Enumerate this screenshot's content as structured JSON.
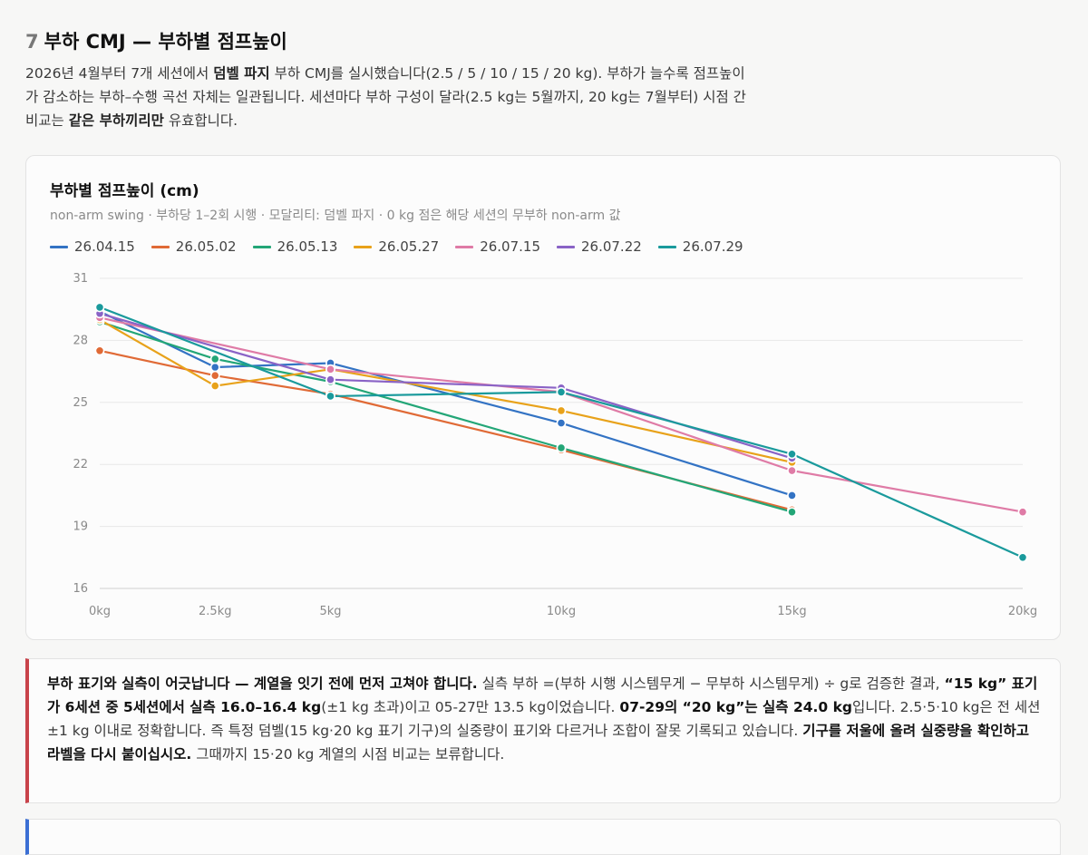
{
  "section": {
    "number": "7",
    "title": "부하 CMJ — 부하별 점프높이"
  },
  "intro": {
    "t1": "2026년 4월부터 7개 세션에서 ",
    "b1": "덤벨 파지",
    "t2": " 부하 CMJ를 실시했습니다(2.5 / 5 / 10 / 15 / 20 kg). 부하가 늘수록 점프높이가 감소하는 부하–수행 곡선 자체는 일관됩니다. 세션마다 부하 구성이 달라(2.5 kg는 5월까지, 20 kg는 7월부터) 시점 간 비교는 ",
    "b2": "같은 부하끼리만",
    "t3": " 유효합니다."
  },
  "chart_data": {
    "type": "line",
    "title": "부하별 점프높이 (cm)",
    "subtitle": "non-arm swing · 부하당 1–2회 시행 · 모달리티: 덤벨 파지 · 0 kg 점은 해당 세션의 무부하 non-arm 값",
    "xlabel": "",
    "ylabel": "",
    "x_ticks": [
      "0kg",
      "2.5kg",
      "5kg",
      "10kg",
      "15kg",
      "20kg"
    ],
    "x_values": [
      0,
      2.5,
      5,
      10,
      15,
      20
    ],
    "y_ticks": [
      "31",
      "28",
      "25",
      "22",
      "19",
      "16"
    ],
    "ylim": [
      16,
      31
    ],
    "xlim": [
      0,
      20
    ],
    "grid": true,
    "legend_position": "top-left",
    "series": [
      {
        "name": "26.04.15",
        "color": "#3373c4",
        "points": [
          [
            0,
            29.4
          ],
          [
            2.5,
            26.7
          ],
          [
            5,
            26.9
          ],
          [
            10,
            24.0
          ],
          [
            15,
            20.5
          ]
        ]
      },
      {
        "name": "26.05.02",
        "color": "#e06a36",
        "points": [
          [
            0,
            27.5
          ],
          [
            2.5,
            26.3
          ],
          [
            5,
            25.4
          ],
          [
            10,
            22.7
          ],
          [
            15,
            19.8
          ]
        ]
      },
      {
        "name": "26.05.13",
        "color": "#23a677",
        "points": [
          [
            0,
            28.9
          ],
          [
            2.5,
            27.1
          ],
          [
            5,
            26.0
          ],
          [
            10,
            22.8
          ],
          [
            15,
            19.7
          ]
        ]
      },
      {
        "name": "26.05.27",
        "color": "#e8a21a",
        "points": [
          [
            0,
            29.0
          ],
          [
            2.5,
            25.8
          ],
          [
            5,
            26.6
          ],
          [
            10,
            24.6
          ],
          [
            15,
            22.1
          ]
        ]
      },
      {
        "name": "26.07.15",
        "color": "#df7ba6",
        "points": [
          [
            0,
            29.1
          ],
          [
            5,
            26.6
          ],
          [
            10,
            25.5
          ],
          [
            15,
            21.7
          ],
          [
            20,
            19.7
          ]
        ]
      },
      {
        "name": "26.07.22",
        "color": "#8a63c6",
        "points": [
          [
            0,
            29.3
          ],
          [
            5,
            26.1
          ],
          [
            10,
            25.7
          ],
          [
            15,
            22.3
          ]
        ]
      },
      {
        "name": "26.07.29",
        "color": "#1a9a9c",
        "points": [
          [
            0,
            29.6
          ],
          [
            5,
            25.3
          ],
          [
            10,
            25.5
          ],
          [
            15,
            22.5
          ],
          [
            20,
            17.5
          ]
        ]
      }
    ]
  },
  "alert": {
    "b1": "부하 표기와 실측이 어긋납니다 — 계열을 잇기 전에 먼저 고쳐야 합니다.",
    "t1": " 실측 부하 =(부하 시행 시스템무게 − 무부하 시스템무게) ÷ g로 검증한 결과, ",
    "b2": "“15 kg” 표기가 6세션 중 5세션에서 실측 16.0–16.4 kg",
    "t2": "(±1 kg 초과)이고 05-27만 13.5 kg이었습니다. ",
    "b3": "07-29의 “20 kg”는 실측 24.0 kg",
    "t3": "입니다. 2.5·5·10 kg은 전 세션 ±1 kg 이내로 정확합니다. 즉 특정 덤벨(15 kg·20 kg 표기 기구)의 실중량이 표기와 다르거나 조합이 잘못 기록되고 있습니다. ",
    "b4": "기구를 저울에 올려 실중량을 확인하고 라벨을 다시 붙이십시오.",
    "t4": " 그때까지 15·20 kg 계열의 시점 비교는 보류합니다."
  },
  "colors": {
    "alert_accent": "#c8434a",
    "info_accent": "#3b6fd4"
  }
}
